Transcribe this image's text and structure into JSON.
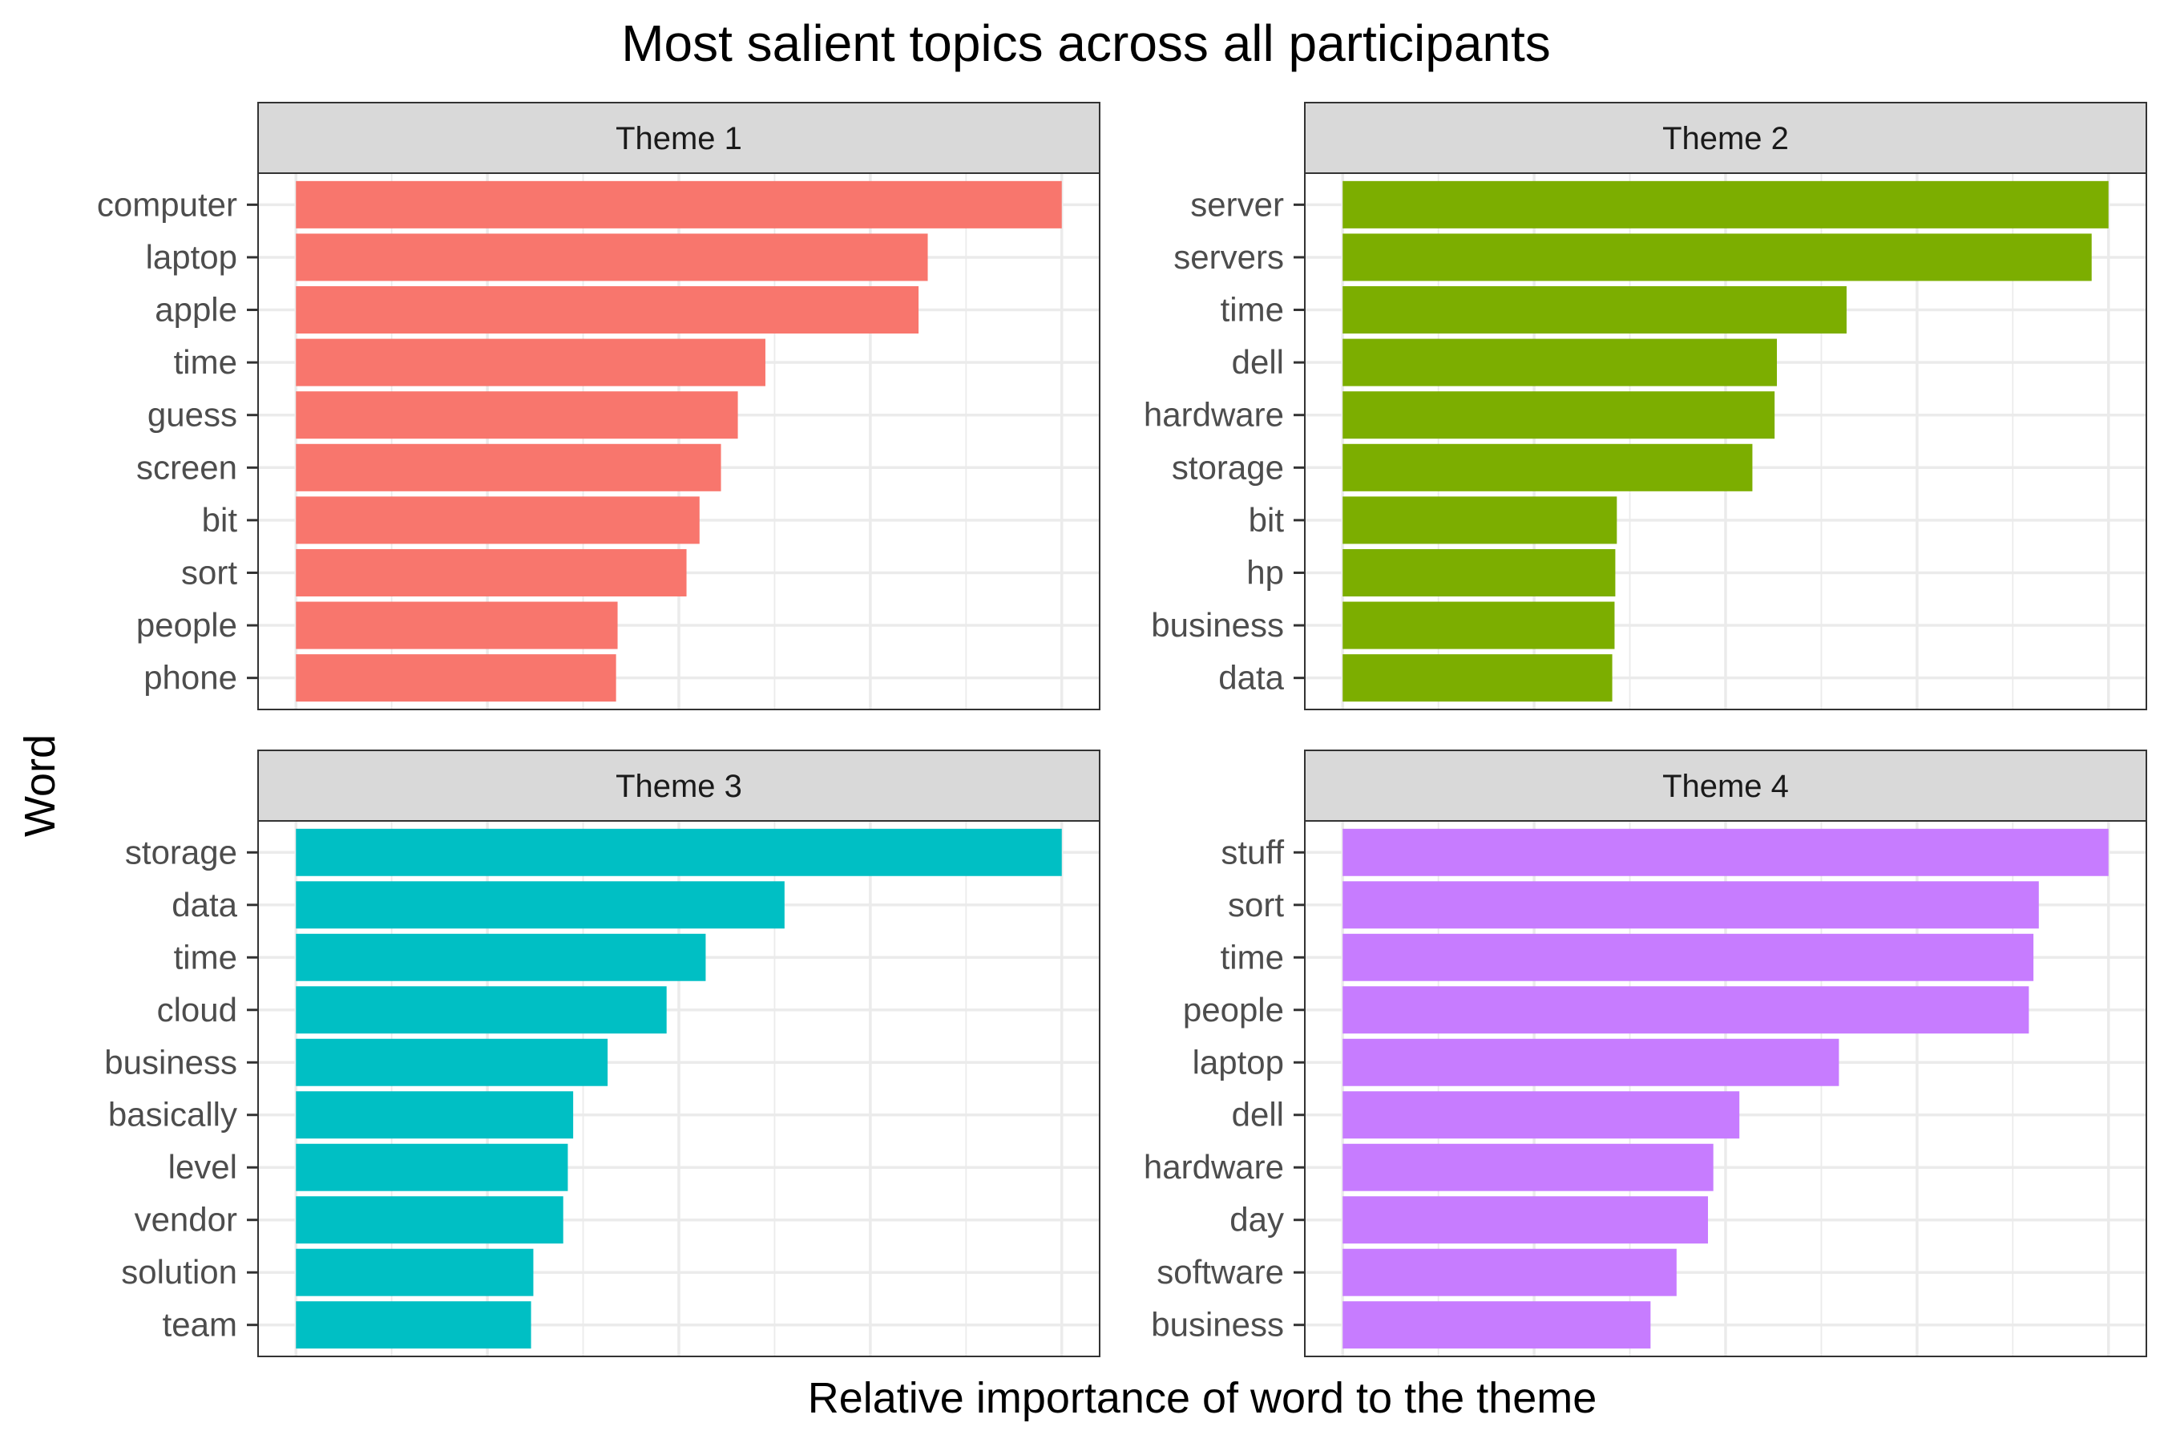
{
  "chart_data": {
    "type": "bar",
    "orientation": "horizontal",
    "title": "Most salient topics across all participants",
    "xlabel": "Relative importance of word to the theme",
    "ylabel": "Word",
    "grid": true,
    "legend": "none",
    "x_tick_labels_shown": false,
    "panels": [
      {
        "label": "Theme 1",
        "color": "#F8766D",
        "categories": [
          "computer",
          "laptop",
          "apple",
          "time",
          "guess",
          "screen",
          "bit",
          "sort",
          "people",
          "phone"
        ],
        "values": [
          1.0,
          0.825,
          0.813,
          0.613,
          0.577,
          0.555,
          0.527,
          0.51,
          0.42,
          0.418
        ]
      },
      {
        "label": "Theme 2",
        "color": "#7CAE00",
        "categories": [
          "server",
          "servers",
          "time",
          "dell",
          "hardware",
          "storage",
          "bit",
          "hp",
          "business",
          "data"
        ],
        "values": [
          1.0,
          0.978,
          0.658,
          0.567,
          0.564,
          0.535,
          0.358,
          0.356,
          0.355,
          0.352
        ]
      },
      {
        "label": "Theme 3",
        "color": "#00BFC4",
        "categories": [
          "storage",
          "data",
          "time",
          "cloud",
          "business",
          "basically",
          "level",
          "vendor",
          "solution",
          "team"
        ],
        "values": [
          1.0,
          0.638,
          0.535,
          0.484,
          0.407,
          0.362,
          0.355,
          0.349,
          0.31,
          0.307
        ]
      },
      {
        "label": "Theme 4",
        "color": "#C77CFF",
        "categories": [
          "stuff",
          "sort",
          "time",
          "people",
          "laptop",
          "dell",
          "hardware",
          "day",
          "software",
          "business"
        ],
        "values": [
          1.0,
          0.909,
          0.902,
          0.896,
          0.648,
          0.518,
          0.484,
          0.477,
          0.436,
          0.402
        ]
      }
    ]
  }
}
